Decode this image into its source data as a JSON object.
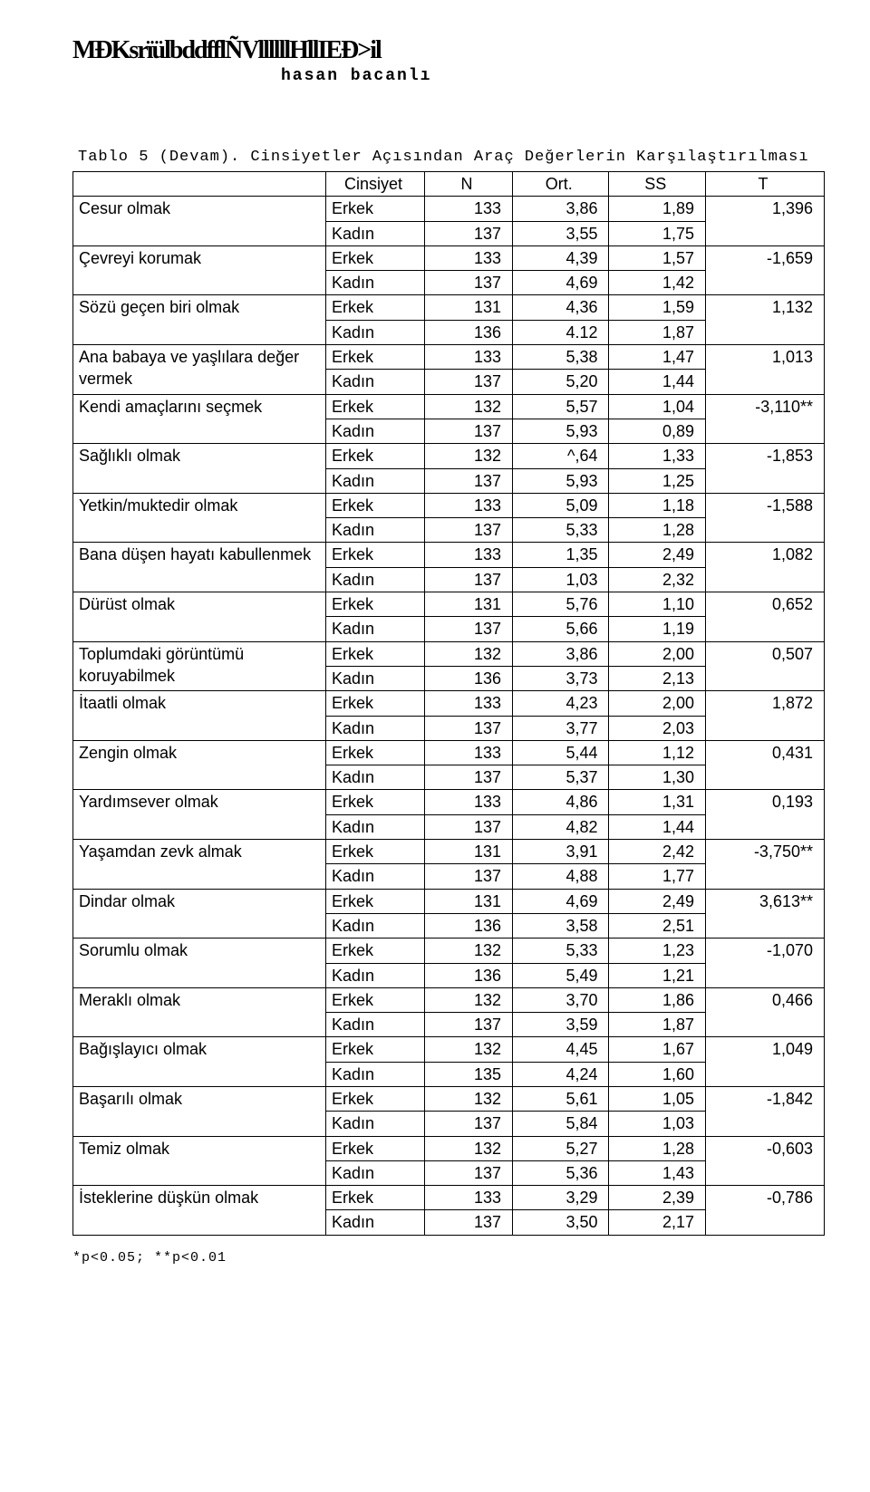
{
  "header_icons": "MÐKsrïülbddfflÑVllllllHllIEÐ>il",
  "author": "hasan bacanlı",
  "table_caption": "Tablo 5 (Devam). Cinsiyetler Açısından Araç Değerlerin Karşılaştırılması",
  "columns": {
    "c1": "",
    "c2": "Cinsiyet",
    "c3": "N",
    "c4": "Ort.",
    "c5": "SS",
    "c6": "T"
  },
  "rows": [
    {
      "label": "Cesur olmak",
      "span": 2,
      "erkek": {
        "n": "133",
        "ort": "3,86",
        "ss": "1,89"
      },
      "t": "1,396",
      "kadin": {
        "n": "137",
        "ort": "3,55",
        "ss": "1,75"
      }
    },
    {
      "label": "Çevreyi korumak",
      "span": 2,
      "erkek": {
        "n": "133",
        "ort": "4,39",
        "ss": "1,57"
      },
      "t": "-1,659",
      "kadin": {
        "n": "137",
        "ort": "4,69",
        "ss": "1,42"
      }
    },
    {
      "label": "Sözü geçen biri olmak",
      "span": 2,
      "erkek": {
        "n": "131",
        "ort": "4,36",
        "ss": "1,59"
      },
      "t": "1,132",
      "kadin": {
        "n": "136",
        "ort": "4.12",
        "ss": "1,87"
      }
    },
    {
      "label": "Ana babaya ve yaşlılara değer vermek",
      "span": 2,
      "erkek": {
        "n": "133",
        "ort": "5,38",
        "ss": "1,47"
      },
      "t": "1,013",
      "kadin": {
        "n": "137",
        "ort": "5,20",
        "ss": "1,44"
      }
    },
    {
      "label": "Kendi amaçlarını seçmek",
      "span": 2,
      "erkek": {
        "n": "132",
        "ort": "5,57",
        "ss": "1,04"
      },
      "t": "-3,110**",
      "kadin": {
        "n": "137",
        "ort": "5,93",
        "ss": "0,89"
      }
    },
    {
      "label": "Sağlıklı olmak",
      "span": 2,
      "erkek": {
        "n": "132",
        "ort": "^,64",
        "ss": "1,33"
      },
      "t": "-1,853",
      "kadin": {
        "n": "137",
        "ort": "5,93",
        "ss": "1,25"
      }
    },
    {
      "label": "Yetkin/muktedir olmak",
      "span": 2,
      "erkek": {
        "n": "133",
        "ort": "5,09",
        "ss": "1,18"
      },
      "t": "-1,588",
      "kadin": {
        "n": "137",
        "ort": "5,33",
        "ss": "1,28"
      }
    },
    {
      "label": "Bana düşen hayatı kabullenmek",
      "span": 2,
      "erkek": {
        "n": "133",
        "ort": "1,35",
        "ss": "2,49"
      },
      "t": "1,082",
      "kadin": {
        "n": "137",
        "ort": "1,03",
        "ss": "2,32"
      }
    },
    {
      "label": "Dürüst olmak",
      "span": 2,
      "erkek": {
        "n": "131",
        "ort": "5,76",
        "ss": "1,10"
      },
      "t": "0,652",
      "kadin": {
        "n": "137",
        "ort": "5,66",
        "ss": "1,19"
      }
    },
    {
      "label": "Toplumdaki görüntümü koruyabilmek",
      "span": 2,
      "erkek": {
        "n": "132",
        "ort": "3,86",
        "ss": "2,00"
      },
      "t": "0,507",
      "kadin": {
        "n": "136",
        "ort": "3,73",
        "ss": "2,13"
      }
    },
    {
      "label": "İtaatli olmak",
      "span": 2,
      "erkek": {
        "n": "133",
        "ort": "4,23",
        "ss": "2,00"
      },
      "t": "1,872",
      "kadin": {
        "n": "137",
        "ort": "3,77",
        "ss": "2,03"
      }
    },
    {
      "label": "Zengin olmak",
      "span": 2,
      "erkek": {
        "n": "133",
        "ort": "5,44",
        "ss": "1,12"
      },
      "t": "0,431",
      "kadin": {
        "n": "137",
        "ort": "5,37",
        "ss": "1,30"
      }
    },
    {
      "label": "Yardımsever olmak",
      "span": 2,
      "erkek": {
        "n": "133",
        "ort": "4,86",
        "ss": "1,31"
      },
      "t": "0,193",
      "kadin": {
        "n": "137",
        "ort": "4,82",
        "ss": "1,44"
      }
    },
    {
      "label": "Yaşamdan zevk almak",
      "span": 2,
      "erkek": {
        "n": "131",
        "ort": "3,91",
        "ss": "2,42"
      },
      "t": "-3,750**",
      "kadin": {
        "n": "137",
        "ort": "4,88",
        "ss": "1,77"
      }
    },
    {
      "label": "Dindar olmak",
      "span": 2,
      "erkek": {
        "n": "131",
        "ort": "4,69",
        "ss": "2,49"
      },
      "t": "3,613**",
      "kadin": {
        "n": "136",
        "ort": "3,58",
        "ss": "2,51"
      }
    },
    {
      "label": "Sorumlu olmak",
      "span": 2,
      "erkek": {
        "n": "132",
        "ort": "5,33",
        "ss": "1,23"
      },
      "t": "-1,070",
      "kadin": {
        "n": "136",
        "ort": "5,49",
        "ss": "1,21"
      }
    },
    {
      "label": "Meraklı olmak",
      "span": 2,
      "erkek": {
        "n": "132",
        "ort": "3,70",
        "ss": "1,86"
      },
      "t": "0,466",
      "kadin": {
        "n": "137",
        "ort": "3,59",
        "ss": "1,87"
      }
    },
    {
      "label": "Bağışlayıcı olmak",
      "span": 2,
      "erkek": {
        "n": "132",
        "ort": "4,45",
        "ss": "1,67"
      },
      "t": "1,049",
      "kadin": {
        "n": "135",
        "ort": "4,24",
        "ss": "1,60"
      }
    },
    {
      "label": "Başarılı olmak",
      "span": 2,
      "erkek": {
        "n": "132",
        "ort": "5,61",
        "ss": "1,05"
      },
      "t": "-1,842",
      "kadin": {
        "n": "137",
        "ort": "5,84",
        "ss": "1,03"
      }
    },
    {
      "label": "Temiz olmak",
      "span": 2,
      "erkek": {
        "n": "132",
        "ort": "5,27",
        "ss": "1,28"
      },
      "t": "-0,603",
      "kadin": {
        "n": "137",
        "ort": "5,36",
        "ss": "1,43"
      }
    },
    {
      "label": "İsteklerine düşkün olmak",
      "span": 2,
      "erkek": {
        "n": "133",
        "ort": "3,29",
        "ss": "2,39"
      },
      "t": "-0,786",
      "kadin": {
        "n": "137",
        "ort": "3,50",
        "ss": "2,17"
      }
    }
  ],
  "gender_labels": {
    "erkek": "Erkek",
    "kadin": "Kadın"
  },
  "footnote": "*p<0.05; **p<0.01"
}
